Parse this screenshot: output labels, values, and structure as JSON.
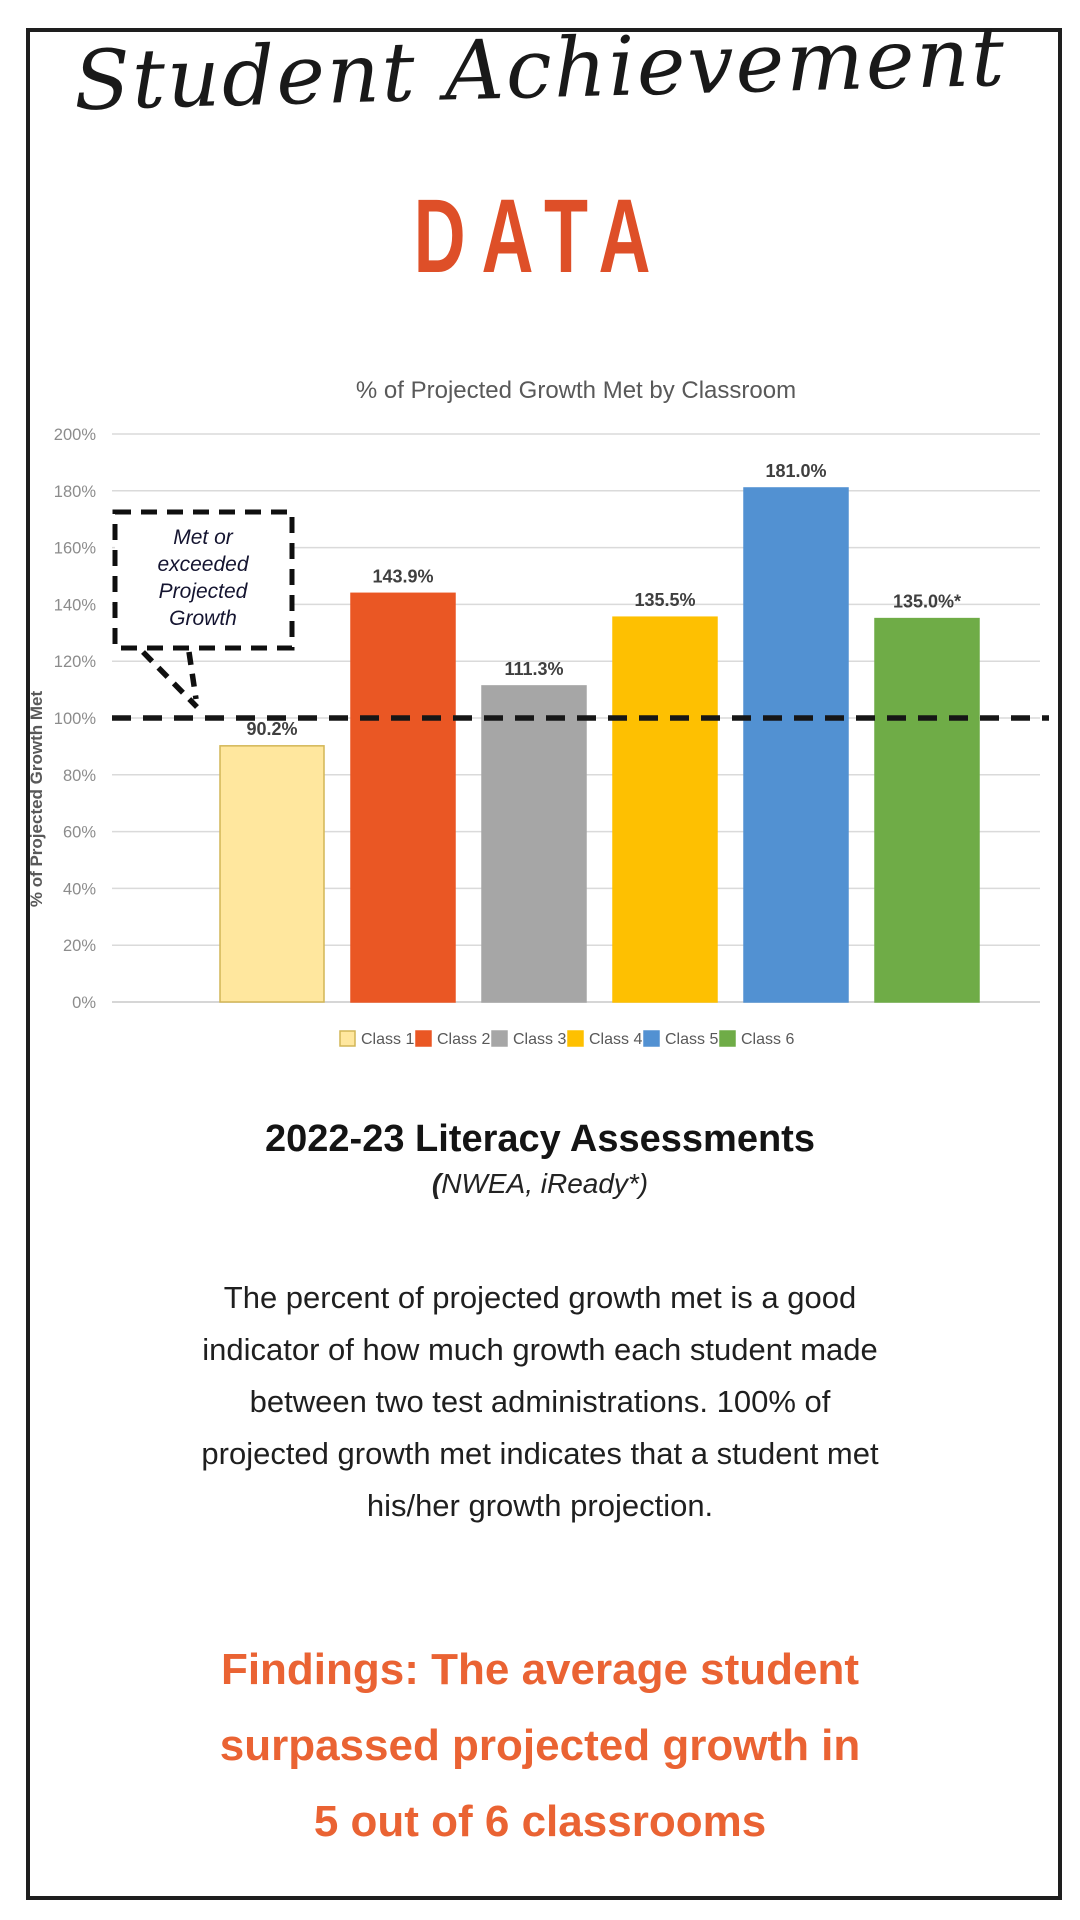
{
  "header": {
    "script_title": "Student Achievement",
    "data_word": "DATA"
  },
  "theme": {
    "data_word_color": "#DE4F28",
    "findings_color": "#EA6333",
    "frame_border_color": "#1E1E1E",
    "chart_title_color": "#595959",
    "axis_label_color": "#8C8C8C",
    "value_label_color": "#3F3F3F",
    "legend_text_color": "#595959",
    "gridline_color": "#DADADA",
    "reference_line_color": "#161616"
  },
  "section": {
    "title": "2022-23 Literacy Assessments",
    "subtitle_open": "(",
    "subtitle_rest": "NWEA, iReady*)"
  },
  "paragraph": {
    "lines": [
      "The percent of projected growth met is a good",
      "indicator of how much growth each student made",
      "between two test administrations. 100% of",
      "projected growth met indicates that a student met",
      "his/her growth projection."
    ]
  },
  "findings": {
    "lines": [
      "Findings: The average student",
      "surpassed projected growth in",
      "5 out of 6 classrooms"
    ]
  },
  "chart_data": {
    "type": "bar",
    "title": "% of Projected Growth Met by Classroom",
    "xlabel": "",
    "ylabel": "% of Projected Growth Met",
    "ylim": [
      0,
      200
    ],
    "ytick_step": 20,
    "ytick_suffix": "%",
    "grid": "horizontal",
    "legend_position": "bottom",
    "categories": [
      "Class 1",
      "Class 2",
      "Class 3",
      "Class 4",
      "Class 5",
      "Class 6"
    ],
    "values": [
      90.2,
      143.9,
      111.3,
      135.5,
      181.0,
      135.0
    ],
    "value_labels": [
      "90.2%",
      "143.9%",
      "111.3%",
      "135.5%",
      "181.0%",
      "135.0%*"
    ],
    "bar_colors": [
      "#FFE79E",
      "#EA5724",
      "#A6A6A6",
      "#FEC001",
      "#5291D2",
      "#6FAC47"
    ],
    "bar_border_colors": [
      "#D2B656",
      "#EA5724",
      "#A6A6A6",
      "#FEC001",
      "#5291D2",
      "#6FAC47"
    ],
    "reference_line": {
      "value": 100,
      "style": "dashed",
      "color": "#161616"
    },
    "annotation": {
      "lines": [
        "Met or",
        "exceeded",
        "Projected",
        "Growth"
      ],
      "style": "dashed-callout",
      "points_to": "100% reference line"
    }
  }
}
